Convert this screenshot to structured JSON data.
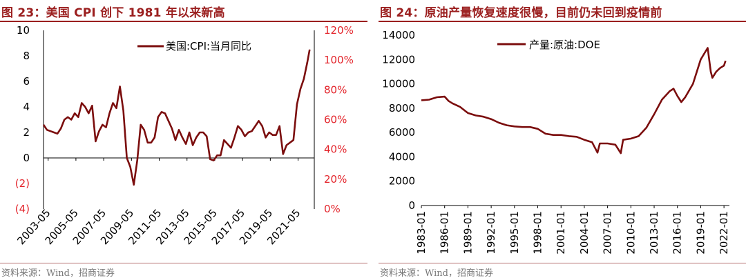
{
  "charts": [
    {
      "figure_title": "图 23：美国 CPI 创下 1981 年以来新高",
      "source": "资料来源：Wind，招商证券",
      "series_color": "#7b0d0d",
      "right_axis_color": "#e3242b",
      "chart_data": {
        "type": "line",
        "title": "图 23：美国 CPI 创下 1981 年以来新高",
        "xlabel": "",
        "ylabel": "",
        "legend_position": "top-right",
        "grid": false,
        "ylim": [
          -4,
          10
        ],
        "y_ticks": [
          -4,
          -2,
          0,
          2,
          4,
          6,
          8,
          10
        ],
        "y_tick_labels": [
          "(4)",
          "(2)",
          "0",
          "2",
          "4",
          "6",
          "8",
          "10"
        ],
        "y2lim": [
          0,
          120
        ],
        "y2_ticks": [
          0,
          20,
          40,
          60,
          80,
          100,
          120
        ],
        "y2_tick_labels": [
          "0%",
          "20%",
          "40%",
          "60%",
          "80%",
          "100%",
          "120%"
        ],
        "x_tick_labels": [
          "2003-05",
          "2005-05",
          "2007-05",
          "2009-05",
          "2011-05",
          "2013-05",
          "2015-05",
          "2017-05",
          "2019-05",
          "2021-05"
        ],
        "series": [
          {
            "name": "美国:CPI:当月同比",
            "axis": "left",
            "x": [
              "2003-01",
              "2003-04",
              "2003-07",
              "2003-10",
              "2004-01",
              "2004-04",
              "2004-07",
              "2004-10",
              "2005-01",
              "2005-04",
              "2005-07",
              "2005-10",
              "2006-01",
              "2006-04",
              "2006-07",
              "2006-10",
              "2007-01",
              "2007-04",
              "2007-07",
              "2007-10",
              "2008-01",
              "2008-04",
              "2008-07",
              "2008-10",
              "2009-01",
              "2009-04",
              "2009-07",
              "2009-10",
              "2010-01",
              "2010-04",
              "2010-07",
              "2010-10",
              "2011-01",
              "2011-04",
              "2011-07",
              "2011-10",
              "2012-01",
              "2012-04",
              "2012-07",
              "2012-10",
              "2013-01",
              "2013-04",
              "2013-07",
              "2013-10",
              "2014-01",
              "2014-04",
              "2014-07",
              "2014-10",
              "2015-01",
              "2015-04",
              "2015-07",
              "2015-10",
              "2016-01",
              "2016-04",
              "2016-07",
              "2016-10",
              "2017-01",
              "2017-04",
              "2017-07",
              "2017-10",
              "2018-01",
              "2018-04",
              "2018-07",
              "2018-10",
              "2019-01",
              "2019-04",
              "2019-07",
              "2019-10",
              "2020-01",
              "2020-04",
              "2020-07",
              "2020-10",
              "2021-01",
              "2021-04",
              "2021-07",
              "2021-10",
              "2022-01",
              "2022-03"
            ],
            "values": [
              2.6,
              2.2,
              2.1,
              2.0,
              1.9,
              2.3,
              3.0,
              3.2,
              3.0,
              3.5,
              3.2,
              4.3,
              4.0,
              3.5,
              4.1,
              1.3,
              2.1,
              2.6,
              2.4,
              3.5,
              4.3,
              3.9,
              5.6,
              3.7,
              0.0,
              -0.7,
              -2.1,
              -0.2,
              2.6,
              2.2,
              1.2,
              1.2,
              1.6,
              3.2,
              3.6,
              3.5,
              2.9,
              2.3,
              1.4,
              2.2,
              1.6,
              1.1,
              2.0,
              1.0,
              1.6,
              2.0,
              2.0,
              1.7,
              -0.1,
              -0.2,
              0.2,
              0.2,
              1.4,
              1.1,
              0.8,
              1.6,
              2.5,
              2.2,
              1.7,
              2.0,
              2.1,
              2.5,
              2.9,
              2.5,
              1.6,
              2.0,
              1.8,
              1.8,
              2.5,
              0.3,
              1.0,
              1.2,
              1.4,
              4.2,
              5.4,
              6.2,
              7.5,
              8.5
            ]
          }
        ]
      }
    },
    {
      "figure_title": "图 24：原油产量恢复速度很慢，目前仍未回到疫情前",
      "source": "资料来源：Wind，招商证券",
      "series_color": "#7b0d0d",
      "chart_data": {
        "type": "line",
        "title": "图 24：原油产量恢复速度很慢，目前仍未回到疫情前",
        "xlabel": "",
        "ylabel": "",
        "legend_position": "top",
        "grid": false,
        "ylim": [
          0,
          14000
        ],
        "y_ticks": [
          0,
          2000,
          4000,
          6000,
          8000,
          10000,
          12000,
          14000
        ],
        "x_tick_labels": [
          "1983-01",
          "1986-01",
          "1989-01",
          "1992-01",
          "1995-01",
          "1998-01",
          "2001-01",
          "2004-01",
          "2007-01",
          "2010-01",
          "2013-01",
          "2016-01",
          "2019-01",
          "2022-01"
        ],
        "series": [
          {
            "name": "产量:原油:DOE",
            "axis": "left",
            "x": [
              1983.0,
              1984.0,
              1985.0,
              1986.0,
              1986.5,
              1987.0,
              1988.0,
              1989.0,
              1990.0,
              1991.0,
              1992.0,
              1993.0,
              1994.0,
              1995.0,
              1996.0,
              1997.0,
              1998.0,
              1999.0,
              2000.0,
              2001.0,
              2002.0,
              2003.0,
              2004.0,
              2005.0,
              2005.7,
              2006.0,
              2007.0,
              2008.0,
              2008.7,
              2009.0,
              2010.0,
              2011.0,
              2012.0,
              2013.0,
              2014.0,
              2015.0,
              2015.5,
              2016.0,
              2016.5,
              2017.0,
              2018.0,
              2019.0,
              2019.9,
              2020.3,
              2020.5,
              2021.0,
              2021.5,
              2022.0,
              2022.2
            ],
            "values": [
              8650,
              8700,
              8900,
              8950,
              8600,
              8400,
              8100,
              7600,
              7400,
              7300,
              7100,
              6800,
              6600,
              6500,
              6450,
              6450,
              6300,
              5900,
              5800,
              5800,
              5700,
              5650,
              5400,
              5200,
              4350,
              5100,
              5100,
              5000,
              4300,
              5400,
              5500,
              5700,
              6400,
              7500,
              8700,
              9400,
              9600,
              9000,
              8500,
              8900,
              10000,
              12000,
              12950,
              11000,
              10500,
              11000,
              11300,
              11500,
              11900
            ]
          }
        ]
      }
    }
  ]
}
